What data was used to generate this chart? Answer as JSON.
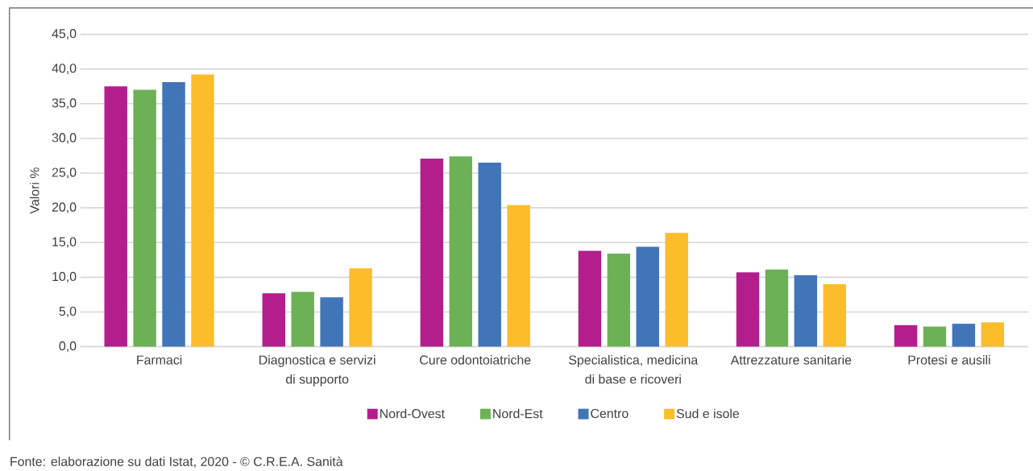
{
  "chart_data": {
    "type": "bar",
    "ylabel": "Valori %",
    "categories": [
      "Farmaci",
      "Diagnostica e servizi di supporto",
      "Cure odontoiatriche",
      "Specialistica, medicina di base e ricoveri",
      "Attrezzature sanitarie",
      "Protesi e ausili"
    ],
    "series": [
      {
        "name": "Nord-Ovest",
        "color": "#b41e8c",
        "values": [
          37.5,
          7.7,
          27.1,
          13.8,
          10.7,
          3.1
        ]
      },
      {
        "name": "Nord-Est",
        "color": "#6db156",
        "values": [
          37.0,
          7.9,
          27.4,
          13.4,
          11.1,
          2.9
        ]
      },
      {
        "name": "Centro",
        "color": "#4274b8",
        "values": [
          38.1,
          7.1,
          26.5,
          14.4,
          10.3,
          3.3
        ]
      },
      {
        "name": "Sud e isole",
        "color": "#fcbd2a",
        "values": [
          39.2,
          11.3,
          20.4,
          16.4,
          9.0,
          3.5
        ]
      }
    ],
    "ylim": [
      0,
      45
    ],
    "yticks": [
      {
        "value": 0,
        "label": "0,0"
      },
      {
        "value": 5,
        "label": "5,0"
      },
      {
        "value": 10,
        "label": "10,0"
      },
      {
        "value": 15,
        "label": "15,0"
      },
      {
        "value": 20,
        "label": "20,0"
      },
      {
        "value": 25,
        "label": "25,0"
      },
      {
        "value": 30,
        "label": "30,0"
      },
      {
        "value": 35,
        "label": "35,0"
      },
      {
        "value": 40,
        "label": "40,0"
      },
      {
        "value": 45,
        "label": "45,0"
      }
    ],
    "grid": "y",
    "legend": "bottom",
    "annotations": [
      "Fonte: elaborazione su dati Istat, 2020 - © C.R.E.A. Sanità"
    ]
  }
}
